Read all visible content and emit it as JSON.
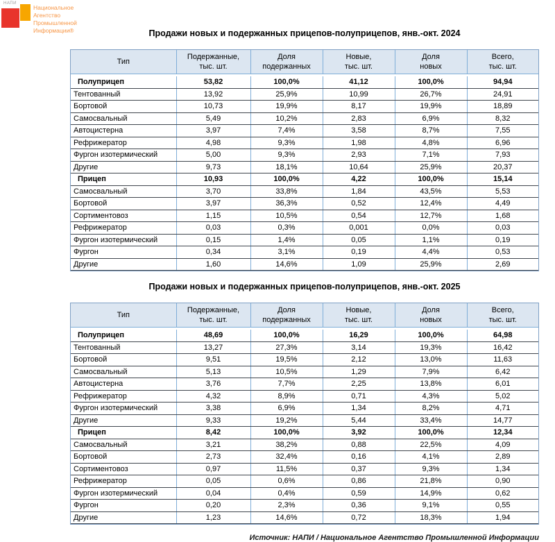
{
  "logo": {
    "abbr": "НАПИ",
    "name": "Национальное\nАгентство\nПромышленной\nИнформации®",
    "colors": {
      "red": "#e8342b",
      "orange": "#f7a600",
      "text": "#f79646"
    }
  },
  "tables": [
    {
      "title": "Продажи новых и подержанных прицепов-полуприцепов, янв.-окт. 2024",
      "columns": {
        "type": "Тип",
        "used": "Подержанные,\nтыс. шт.",
        "used_share": "Доля\nподержанных",
        "new": "Новые,\nтыс. шт.",
        "new_share": "Доля\nновых",
        "total": "Всего,\nтыс. шт."
      },
      "rows": [
        {
          "type": "Полуприцеп",
          "used": "53,82",
          "used_share": "100,0%",
          "new": "41,12",
          "new_share": "100,0%",
          "total": "94,94",
          "bold": true
        },
        {
          "type": "Тентованный",
          "used": "13,92",
          "used_share": "25,9%",
          "new": "10,99",
          "new_share": "26,7%",
          "total": "24,91"
        },
        {
          "type": "Бортовой",
          "used": "10,73",
          "used_share": "19,9%",
          "new": "8,17",
          "new_share": "19,9%",
          "total": "18,89"
        },
        {
          "type": "Самосвальный",
          "used": "5,49",
          "used_share": "10,2%",
          "new": "2,83",
          "new_share": "6,9%",
          "total": "8,32"
        },
        {
          "type": "Автоцистерна",
          "used": "3,97",
          "used_share": "7,4%",
          "new": "3,58",
          "new_share": "8,7%",
          "total": "7,55"
        },
        {
          "type": "Рефрижератор",
          "used": "4,98",
          "used_share": "9,3%",
          "new": "1,98",
          "new_share": "4,8%",
          "total": "6,96"
        },
        {
          "type": "Фургон изотермический",
          "used": "5,00",
          "used_share": "9,3%",
          "new": "2,93",
          "new_share": "7,1%",
          "total": "7,93"
        },
        {
          "type": "Другие",
          "used": "9,73",
          "used_share": "18,1%",
          "new": "10,64",
          "new_share": "25,9%",
          "total": "20,37"
        },
        {
          "type": "Прицеп",
          "used": "10,93",
          "used_share": "100,0%",
          "new": "4,22",
          "new_share": "100,0%",
          "total": "15,14",
          "bold": true
        },
        {
          "type": "Самосвальный",
          "used": "3,70",
          "used_share": "33,8%",
          "new": "1,84",
          "new_share": "43,5%",
          "total": "5,53"
        },
        {
          "type": "Бортовой",
          "used": "3,97",
          "used_share": "36,3%",
          "new": "0,52",
          "new_share": "12,4%",
          "total": "4,49"
        },
        {
          "type": "Сортиментовоз",
          "used": "1,15",
          "used_share": "10,5%",
          "new": "0,54",
          "new_share": "12,7%",
          "total": "1,68"
        },
        {
          "type": "Рефрижератор",
          "used": "0,03",
          "used_share": "0,3%",
          "new": "0,001",
          "new_share": "0,0%",
          "total": "0,03"
        },
        {
          "type": "Фургон изотермический",
          "used": "0,15",
          "used_share": "1,4%",
          "new": "0,05",
          "new_share": "1,1%",
          "total": "0,19"
        },
        {
          "type": "Фургон",
          "used": "0,34",
          "used_share": "3,1%",
          "new": "0,19",
          "new_share": "4,4%",
          "total": "0,53"
        },
        {
          "type": "Другие",
          "used": "1,60",
          "used_share": "14,6%",
          "new": "1,09",
          "new_share": "25,9%",
          "total": "2,69"
        }
      ]
    },
    {
      "title": "Продажи новых и подержанных прицепов-полуприцепов, янв.-окт. 2025",
      "columns": {
        "type": "Тип",
        "used": "Подержанные,\nтыс. шт.",
        "used_share": "Доля\nподержанных",
        "new": "Новые,\nтыс. шт.",
        "new_share": "Доля\nновых",
        "total": "Всего,\nтыс. шт."
      },
      "rows": [
        {
          "type": "Полуприцеп",
          "used": "48,69",
          "used_share": "100,0%",
          "new": "16,29",
          "new_share": "100,0%",
          "total": "64,98",
          "bold": true
        },
        {
          "type": "Тентованный",
          "used": "13,27",
          "used_share": "27,3%",
          "new": "3,14",
          "new_share": "19,3%",
          "total": "16,42"
        },
        {
          "type": "Бортовой",
          "used": "9,51",
          "used_share": "19,5%",
          "new": "2,12",
          "new_share": "13,0%",
          "total": "11,63"
        },
        {
          "type": "Самосвальный",
          "used": "5,13",
          "used_share": "10,5%",
          "new": "1,29",
          "new_share": "7,9%",
          "total": "6,42"
        },
        {
          "type": "Автоцистерна",
          "used": "3,76",
          "used_share": "7,7%",
          "new": "2,25",
          "new_share": "13,8%",
          "total": "6,01"
        },
        {
          "type": "Рефрижератор",
          "used": "4,32",
          "used_share": "8,9%",
          "new": "0,71",
          "new_share": "4,3%",
          "total": "5,02"
        },
        {
          "type": "Фургон изотермический",
          "used": "3,38",
          "used_share": "6,9%",
          "new": "1,34",
          "new_share": "8,2%",
          "total": "4,71"
        },
        {
          "type": "Другие",
          "used": "9,33",
          "used_share": "19,2%",
          "new": "5,44",
          "new_share": "33,4%",
          "total": "14,77"
        },
        {
          "type": "Прицеп",
          "used": "8,42",
          "used_share": "100,0%",
          "new": "3,92",
          "new_share": "100,0%",
          "total": "12,34",
          "bold": true
        },
        {
          "type": "Самосвальный",
          "used": "3,21",
          "used_share": "38,2%",
          "new": "0,88",
          "new_share": "22,5%",
          "total": "4,09"
        },
        {
          "type": "Бортовой",
          "used": "2,73",
          "used_share": "32,4%",
          "new": "0,16",
          "new_share": "4,1%",
          "total": "2,89"
        },
        {
          "type": "Сортиментовоз",
          "used": "0,97",
          "used_share": "11,5%",
          "new": "0,37",
          "new_share": "9,3%",
          "total": "1,34"
        },
        {
          "type": "Рефрижератор",
          "used": "0,05",
          "used_share": "0,6%",
          "new": "0,86",
          "new_share": "21,8%",
          "total": "0,90"
        },
        {
          "type": "Фургон изотермический",
          "used": "0,04",
          "used_share": "0,4%",
          "new": "0,59",
          "new_share": "14,9%",
          "total": "0,62"
        },
        {
          "type": "Фургон",
          "used": "0,20",
          "used_share": "2,3%",
          "new": "0,36",
          "new_share": "9,1%",
          "total": "0,55"
        },
        {
          "type": "Другие",
          "used": "1,23",
          "used_share": "14,6%",
          "new": "0,72",
          "new_share": "18,3%",
          "total": "1,94"
        }
      ]
    }
  ],
  "footer": {
    "source": "Источник: НАПИ / Национальное Агентство Промышленной Информации"
  }
}
